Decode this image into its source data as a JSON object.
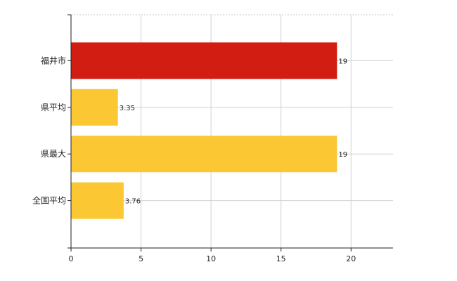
{
  "chart_data": {
    "type": "bar",
    "orientation": "horizontal",
    "categories": [
      "福井市",
      "県平均",
      "県最大",
      "全国平均"
    ],
    "values": [
      19,
      3.35,
      19,
      3.76
    ],
    "data_labels": [
      "19",
      "3.35",
      "19",
      "3.76"
    ],
    "bar_colors": [
      "#d11d12",
      "#fbc834",
      "#fbc834",
      "#fbc834"
    ],
    "xlim": [
      0,
      23
    ],
    "x_ticks": [
      0,
      5,
      10,
      15,
      20
    ],
    "grid": true,
    "title": "",
    "xlabel": "",
    "ylabel": ""
  }
}
